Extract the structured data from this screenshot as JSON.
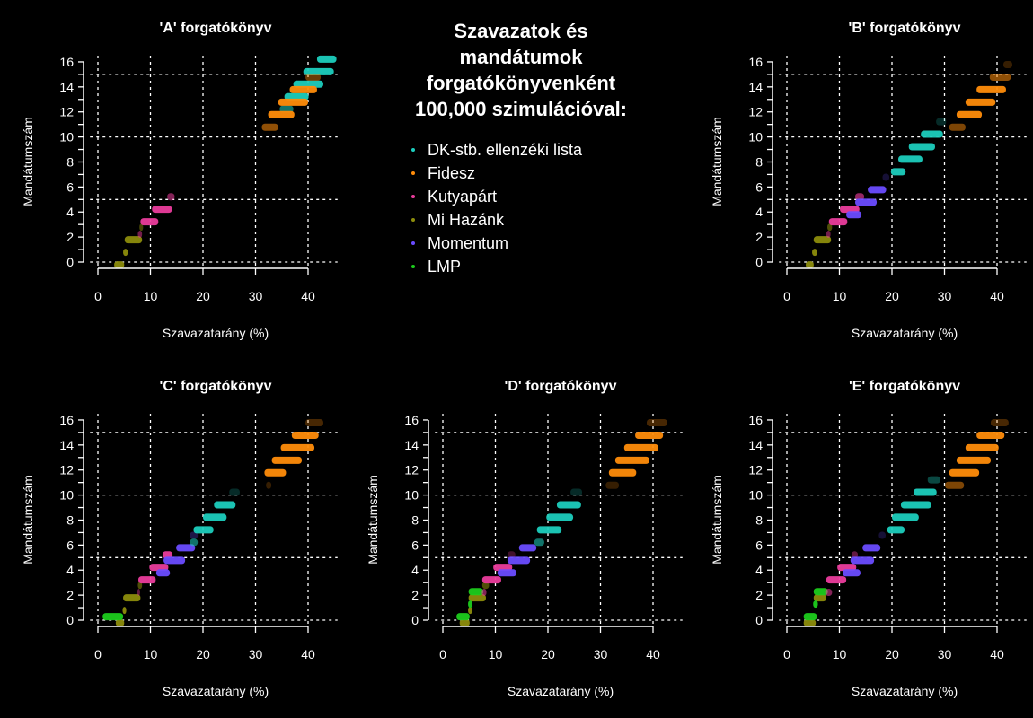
{
  "chart_data": {
    "type": "scatter",
    "title": "Szavazatok és mandátumok forgatókönyvenként 100,000 szimulációval:",
    "legend_position": "top-center",
    "parties": [
      {
        "key": "dk",
        "name": "DK-stb. ellenzéki lista",
        "color": "#1ccdbd"
      },
      {
        "key": "fidesz",
        "name": "Fidesz",
        "color": "#ff8c0a"
      },
      {
        "key": "kutya",
        "name": "Kutyapárt",
        "color": "#ea3c9c"
      },
      {
        "key": "mi",
        "name": "Mi Hazánk",
        "color": "#8c8c0c"
      },
      {
        "key": "mom",
        "name": "Momentum",
        "color": "#6a4cff"
      },
      {
        "key": "lmp",
        "name": "LMP",
        "color": "#1ccc1c"
      }
    ],
    "xlabel": "Szavazatarány (%)",
    "ylabel": "Mandátumszám",
    "xlim": [
      -1.5,
      45.6
    ],
    "ylim": [
      -0.5,
      16.5
    ],
    "xticks": [
      0,
      10,
      20,
      30,
      40
    ],
    "yticks": [
      0,
      2,
      4,
      6,
      8,
      10,
      12,
      14,
      16
    ],
    "grid_x": [
      0,
      10,
      20,
      30,
      40
    ],
    "grid_y": [
      0,
      5,
      10,
      15
    ],
    "note": "bands: [seats, vote_min_pct, vote_max_pct, density]",
    "panels": [
      {
        "title": "'A' forgatókönyv",
        "bands": {
          "dk": [
            [
              16,
              41.7,
              45.4,
              1
            ],
            [
              15,
              39.1,
              44.9,
              1
            ],
            [
              14,
              37.2,
              42.9,
              1
            ],
            [
              13,
              35.5,
              40.1,
              1
            ],
            [
              12,
              34.6,
              37.2,
              0.8
            ]
          ],
          "fidesz": [
            [
              15,
              39.5,
              42.4,
              0.6
            ],
            [
              14,
              36.5,
              41.7,
              1
            ],
            [
              13,
              34.3,
              40.0,
              1
            ],
            [
              12,
              32.4,
              37.4,
              1
            ],
            [
              11,
              31.2,
              34.3,
              0.8
            ]
          ],
          "kutya": [
            [
              5,
              13.2,
              14.6,
              0.8
            ],
            [
              4,
              10.3,
              14.1,
              1
            ],
            [
              3,
              8.1,
              11.5,
              1
            ],
            [
              2,
              7.6,
              8.4,
              0.7
            ]
          ],
          "mi": [
            [
              3,
              7.9,
              8.6,
              0.7
            ],
            [
              2,
              5.1,
              8.4,
              1
            ],
            [
              1,
              4.8,
              5.7,
              1
            ],
            [
              0,
              3.1,
              5.0,
              1
            ]
          ],
          "mom": [],
          "lmp": []
        }
      },
      {
        "title": "'B' forgatókönyv",
        "bands": {
          "dk": [
            [
              11,
              28.4,
              30.3,
              0.3
            ],
            [
              10,
              25.5,
              29.7,
              1
            ],
            [
              9,
              23.2,
              28.2,
              1
            ],
            [
              8,
              21.2,
              25.8,
              1
            ],
            [
              7,
              19.8,
              22.6,
              1
            ]
          ],
          "fidesz": [
            [
              16,
              41.2,
              42.9,
              0.3
            ],
            [
              15,
              38.6,
              42.6,
              0.8
            ],
            [
              14,
              36.1,
              41.7,
              1
            ],
            [
              13,
              34.0,
              39.7,
              1
            ],
            [
              12,
              32.3,
              37.1,
              1
            ],
            [
              11,
              30.9,
              34.0,
              0.7
            ]
          ],
          "kutya": [
            [
              5,
              13.0,
              14.7,
              0.9
            ],
            [
              4,
              10.1,
              13.8,
              1
            ],
            [
              3,
              8.0,
              11.5,
              1
            ],
            [
              2,
              7.5,
              8.3,
              0.7
            ]
          ],
          "mi": [
            [
              3,
              7.7,
              8.6,
              0.8
            ],
            [
              2,
              5.1,
              8.4,
              1
            ],
            [
              1,
              4.8,
              5.8,
              1
            ],
            [
              0,
              3.6,
              5.1,
              1
            ]
          ],
          "mom": [
            [
              7,
              18.2,
              19.5,
              0.3
            ],
            [
              6,
              15.4,
              18.9,
              1
            ],
            [
              5,
              13.0,
              17.1,
              1
            ],
            [
              4,
              11.3,
              14.2,
              1
            ]
          ],
          "lmp": []
        }
      },
      {
        "title": "'C' forgatókönyv",
        "bands": {
          "dk": [
            [
              10,
              25.0,
              27.0,
              0.3
            ],
            [
              9,
              22.1,
              26.2,
              1
            ],
            [
              8,
              20.0,
              24.5,
              1
            ],
            [
              7,
              18.2,
              22.0,
              1
            ],
            [
              6,
              17.5,
              19.0,
              0.8
            ]
          ],
          "fidesz": [
            [
              16,
              39.5,
              42.9,
              0.4
            ],
            [
              15,
              36.9,
              42.0,
              1
            ],
            [
              14,
              34.8,
              41.2,
              1
            ],
            [
              13,
              33.1,
              38.8,
              1
            ],
            [
              12,
              31.7,
              35.8,
              1
            ],
            [
              11,
              32.0,
              33.0,
              0.3
            ]
          ],
          "kutya": [
            [
              5,
              12.3,
              14.2,
              1
            ],
            [
              4,
              9.8,
              13.4,
              1
            ],
            [
              3,
              7.7,
              11.0,
              1
            ],
            [
              2,
              7.5,
              8.0,
              0.6
            ]
          ],
          "mi": [
            [
              3,
              7.6,
              8.4,
              0.8
            ],
            [
              2,
              4.8,
              8.1,
              1
            ],
            [
              1,
              4.7,
              5.4,
              1
            ],
            [
              0,
              3.4,
              5.0,
              1
            ]
          ],
          "mom": [
            [
              7,
              17.5,
              19.0,
              0.4
            ],
            [
              6,
              14.9,
              18.5,
              1
            ],
            [
              5,
              12.5,
              16.6,
              1
            ],
            [
              4,
              11.1,
              13.7,
              1
            ]
          ],
          "lmp": [
            [
              0,
              0.9,
              4.8,
              1
            ]
          ]
        }
      },
      {
        "title": "'D' forgatókönyv",
        "bands": {
          "dk": [
            [
              10,
              24.3,
              26.5,
              0.3
            ],
            [
              9,
              21.7,
              26.3,
              1
            ],
            [
              8,
              19.7,
              24.8,
              1
            ],
            [
              7,
              17.9,
              22.6,
              1
            ],
            [
              6,
              17.4,
              19.3,
              0.8
            ]
          ],
          "fidesz": [
            [
              16,
              38.8,
              42.7,
              0.4
            ],
            [
              15,
              36.6,
              41.9,
              1
            ],
            [
              14,
              34.5,
              41.0,
              1
            ],
            [
              13,
              32.8,
              39.3,
              1
            ],
            [
              12,
              31.6,
              36.8,
              1
            ],
            [
              11,
              31.0,
              33.5,
              0.3
            ]
          ],
          "kutya": [
            [
              5,
              12.3,
              13.8,
              0.4
            ],
            [
              4,
              9.6,
              13.2,
              1
            ],
            [
              3,
              7.5,
              11.1,
              1
            ],
            [
              2,
              7.4,
              8.3,
              0.8
            ]
          ],
          "mi": [
            [
              3,
              7.5,
              8.8,
              0.8
            ],
            [
              2,
              4.9,
              8.2,
              1
            ],
            [
              1,
              4.8,
              5.6,
              1
            ],
            [
              0,
              3.2,
              5.1,
              1
            ]
          ],
          "mom": [
            [
              6,
              14.5,
              17.8,
              1
            ],
            [
              5,
              12.3,
              16.6,
              1
            ],
            [
              4,
              10.4,
              14.0,
              1
            ]
          ],
          "lmp": [
            [
              2,
              4.9,
              7.7,
              1
            ],
            [
              1,
              4.8,
              5.6,
              1
            ],
            [
              0,
              2.6,
              5.1,
              1
            ]
          ]
        }
      },
      {
        "title": "'E' forgatókönyv",
        "bands": {
          "dk": [
            [
              11,
              26.8,
              29.2,
              0.5
            ],
            [
              10,
              24.1,
              28.5,
              1
            ],
            [
              9,
              21.7,
              27.5,
              1
            ],
            [
              8,
              20.0,
              25.1,
              1
            ],
            [
              7,
              19.1,
              22.4,
              1
            ]
          ],
          "fidesz": [
            [
              16,
              38.8,
              42.2,
              0.4
            ],
            [
              15,
              36.1,
              41.4,
              1
            ],
            [
              14,
              34.0,
              40.3,
              1
            ],
            [
              13,
              32.3,
              38.8,
              1
            ],
            [
              12,
              30.9,
              36.6,
              1
            ],
            [
              11,
              30.1,
              33.7,
              0.7
            ]
          ],
          "kutya": [
            [
              5,
              12.3,
              13.5,
              0.6
            ],
            [
              4,
              9.6,
              13.2,
              1
            ],
            [
              3,
              7.5,
              11.3,
              1
            ],
            [
              2,
              7.3,
              8.6,
              0.8
            ]
          ],
          "mi": [
            [
              2,
              5.1,
              7.5,
              1
            ],
            [
              0,
              3.2,
              5.5,
              1
            ]
          ],
          "mom": [
            [
              7,
              17.5,
              18.8,
              0.3
            ],
            [
              6,
              14.4,
              17.8,
              1
            ],
            [
              5,
              12.1,
              16.6,
              1
            ],
            [
              4,
              10.6,
              14.0,
              1
            ]
          ],
          "lmp": [
            [
              2,
              5.1,
              7.8,
              1
            ],
            [
              1,
              5.0,
              5.9,
              1
            ],
            [
              0,
              3.2,
              5.7,
              1
            ]
          ]
        }
      }
    ]
  }
}
